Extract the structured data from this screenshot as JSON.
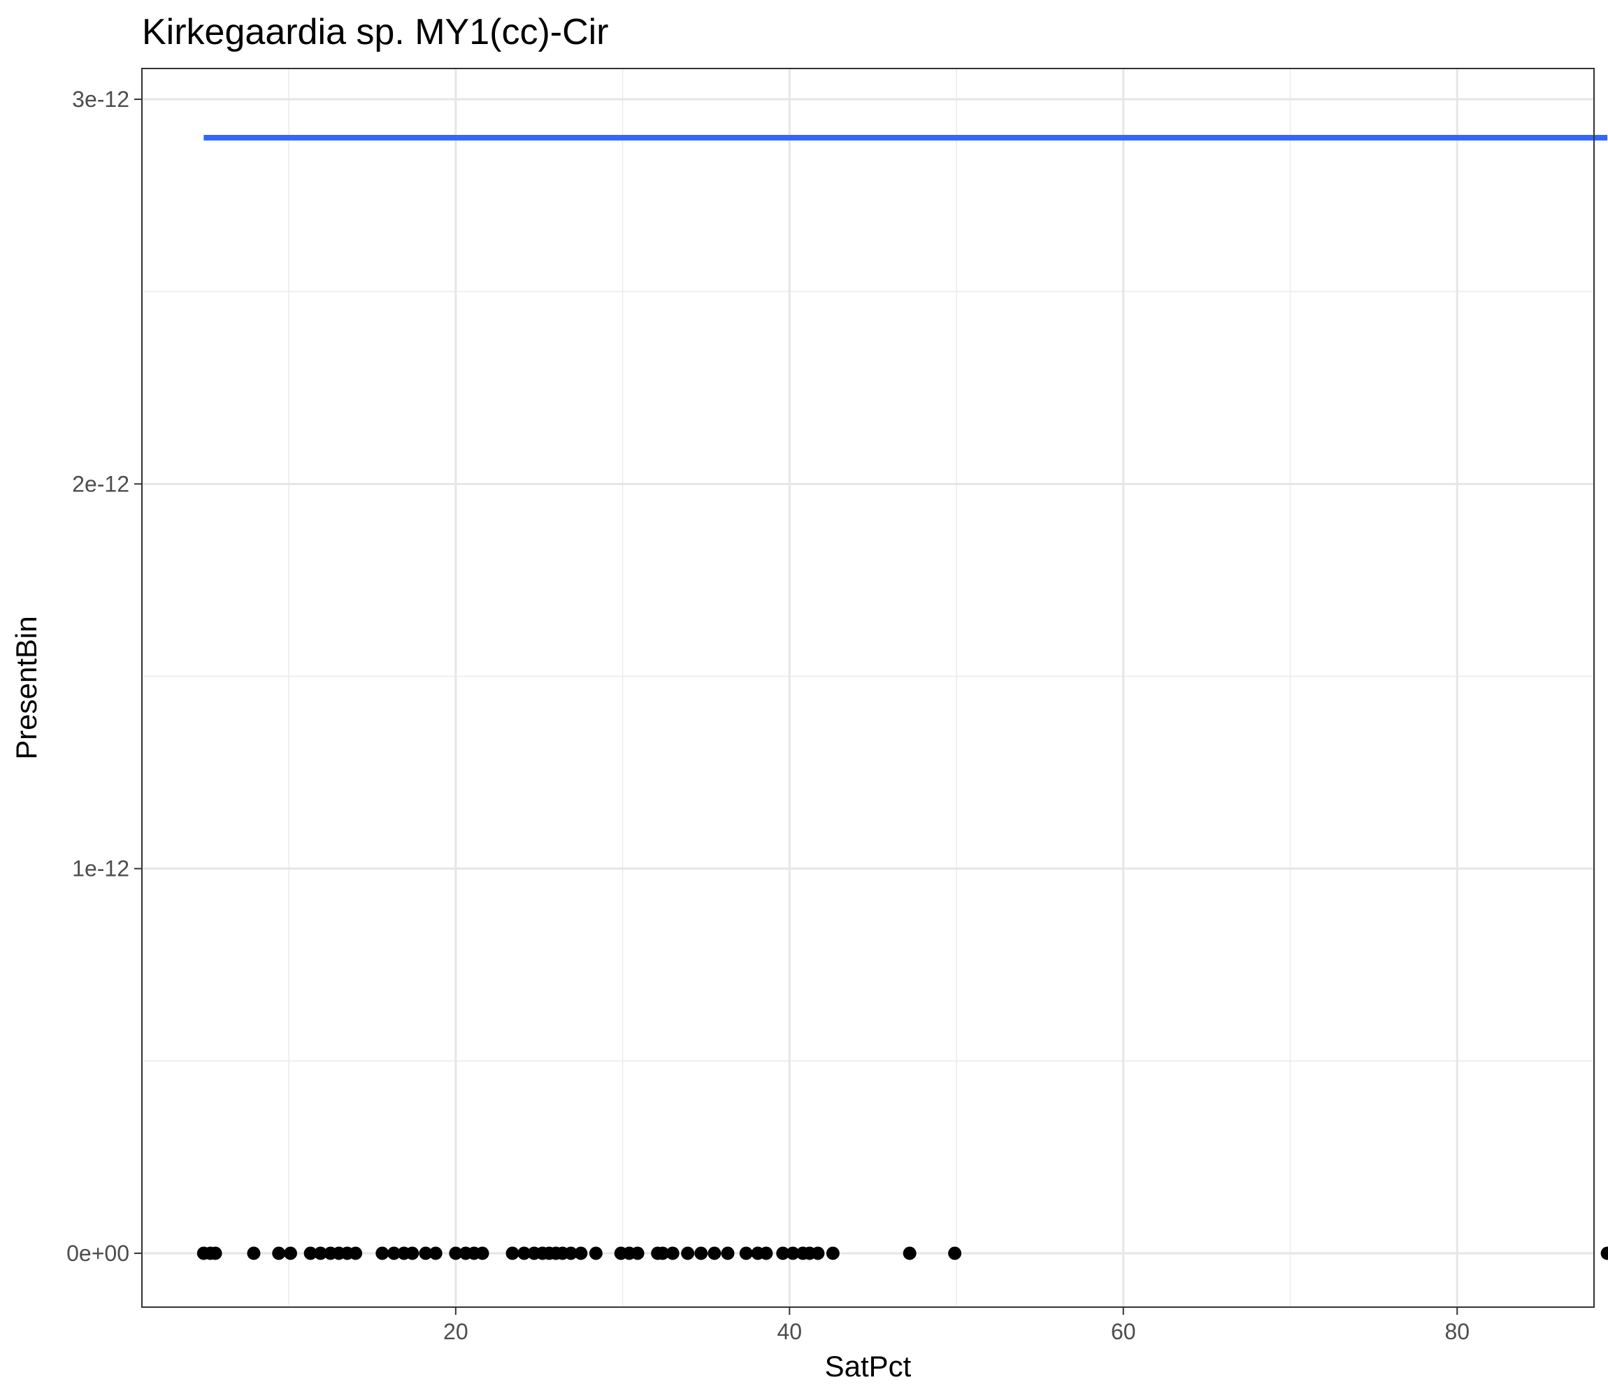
{
  "chart_data": {
    "type": "scatter",
    "title": "Kirkegaardia sp. MY1(cc)-Cir",
    "xlabel": "SatPct",
    "ylabel": "PresentBin",
    "xlim": [
      1.2,
      88.2
    ],
    "ylim": [
      -1.4e-13,
      3.08e-12
    ],
    "x_ticks": [
      20,
      40,
      60,
      80
    ],
    "x_tick_labels": [
      "20",
      "40",
      "60",
      "80"
    ],
    "x_minor_ticks": [
      10,
      30,
      50,
      70
    ],
    "y_ticks": [
      0,
      1e-12,
      2e-12,
      3e-12
    ],
    "y_tick_labels": [
      "0e+00",
      "1e-12",
      "2e-12",
      "3e-12"
    ],
    "y_minor_ticks": [
      5e-13,
      1.5e-12,
      2.5e-12
    ],
    "grid": true,
    "colors": {
      "points": "#000000",
      "fit_line": "#3366FF"
    },
    "points": {
      "x": [
        4.9,
        5.3,
        5.6,
        7.9,
        9.4,
        10.1,
        11.3,
        11.9,
        12.5,
        13.0,
        13.5,
        14.0,
        15.6,
        16.3,
        16.9,
        17.4,
        18.2,
        18.8,
        20.0,
        20.6,
        21.1,
        21.6,
        23.4,
        24.1,
        24.7,
        25.2,
        25.6,
        26.0,
        26.4,
        26.9,
        27.5,
        28.4,
        29.9,
        30.4,
        30.9,
        32.1,
        32.4,
        33.0,
        33.9,
        34.7,
        35.5,
        36.3,
        37.4,
        38.1,
        38.6,
        39.6,
        40.2,
        40.8,
        41.2,
        41.7,
        42.6,
        47.2,
        49.9,
        89.0
      ],
      "y": [
        0,
        0,
        0,
        0,
        0,
        0,
        0,
        0,
        0,
        0,
        0,
        0,
        0,
        0,
        0,
        0,
        0,
        0,
        0,
        0,
        0,
        0,
        0,
        0,
        0,
        0,
        0,
        0,
        0,
        0,
        0,
        0,
        0,
        0,
        0,
        0,
        0,
        0,
        0,
        0,
        0,
        0,
        0,
        0,
        0,
        0,
        0,
        0,
        0,
        0,
        0,
        0,
        0,
        0
      ]
    },
    "fit_line": {
      "x": [
        4.9,
        89.0
      ],
      "y": [
        2.9e-12,
        2.9e-12
      ]
    }
  }
}
